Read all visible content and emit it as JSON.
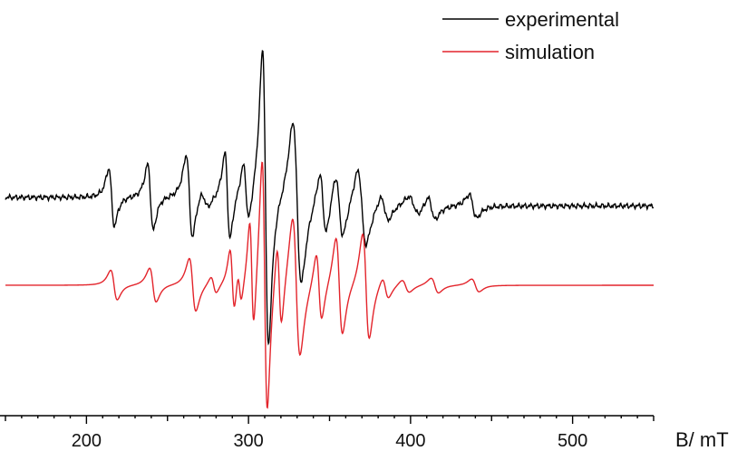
{
  "chart_data": {
    "type": "line",
    "title": "",
    "xlabel": "B/ mT",
    "ylabel": "",
    "xlim": [
      150,
      550
    ],
    "x_ticks": [
      200,
      300,
      400,
      500
    ],
    "y_axis_visible": false,
    "grid": false,
    "legend_position": "top-right",
    "series": [
      {
        "name": "experimental",
        "color": "#000000",
        "baseline": 0,
        "noise": true,
        "features": [
          {
            "type": "first_derivative",
            "center": 215.5,
            "width": 3.0,
            "amplitude": 135,
            "note": "absorption"
          },
          {
            "type": "first_derivative",
            "center": 239.5,
            "width": 3.0,
            "amplitude": 155,
            "note": "absorption"
          },
          {
            "type": "first_derivative",
            "center": 263.5,
            "width": 3.3,
            "amplitude": 195
          },
          {
            "type": "first_derivative",
            "center": 273.0,
            "width": 4.0,
            "amplitude": 40
          },
          {
            "type": "first_derivative",
            "center": 287.0,
            "width": 2.8,
            "amplitude": 205
          },
          {
            "type": "first_derivative",
            "center": 298.5,
            "width": 3.0,
            "amplitude": 140
          },
          {
            "type": "first_derivative",
            "center": 310.5,
            "width": 3.2,
            "amplitude": 700
          },
          {
            "type": "first_derivative",
            "center": 330.0,
            "width": 4.5,
            "amplitude": 380
          },
          {
            "type": "first_derivative",
            "center": 346.0,
            "width": 3.5,
            "amplitude": 150
          },
          {
            "type": "first_derivative",
            "center": 356.0,
            "width": 4.0,
            "amplitude": 150
          },
          {
            "type": "first_derivative",
            "center": 370.0,
            "width": 4.5,
            "amplitude": 180
          },
          {
            "type": "first_derivative",
            "center": 384.0,
            "width": 4.0,
            "amplitude": 60
          },
          {
            "type": "first_derivative",
            "center": 402.0,
            "width": 5.5,
            "amplitude": 45
          },
          {
            "type": "first_derivative",
            "center": 413.0,
            "width": 4.0,
            "amplitude": 55
          },
          {
            "type": "first_derivative",
            "center": 438.5,
            "width": 4.0,
            "amplitude": 55
          }
        ],
        "tail_shift": -13
      },
      {
        "name": "simulation",
        "color": "#e3242b",
        "baseline": 0,
        "noise": false,
        "features": [
          {
            "type": "first_derivative",
            "center": 217.0,
            "width": 3.5,
            "amplitude": 70
          },
          {
            "type": "first_derivative",
            "center": 241.0,
            "width": 3.5,
            "amplitude": 80
          },
          {
            "type": "first_derivative",
            "center": 265.5,
            "width": 3.5,
            "amplitude": 125
          },
          {
            "type": "first_derivative",
            "center": 278.5,
            "width": 3.0,
            "amplitude": 40
          },
          {
            "type": "first_derivative",
            "center": 290.0,
            "width": 2.5,
            "amplitude": 150
          },
          {
            "type": "first_derivative",
            "center": 294.5,
            "width": 2.2,
            "amplitude": 80
          },
          {
            "type": "first_derivative",
            "center": 302.0,
            "width": 2.3,
            "amplitude": 260
          },
          {
            "type": "first_derivative",
            "center": 310.0,
            "width": 2.8,
            "amplitude": 600
          },
          {
            "type": "first_derivative",
            "center": 319.0,
            "width": 2.5,
            "amplitude": 200
          },
          {
            "type": "first_derivative",
            "center": 329.5,
            "width": 4.0,
            "amplitude": 330
          },
          {
            "type": "first_derivative",
            "center": 343.5,
            "width": 3.0,
            "amplitude": 160
          },
          {
            "type": "first_derivative",
            "center": 356.0,
            "width": 3.5,
            "amplitude": 230
          },
          {
            "type": "first_derivative",
            "center": 372.5,
            "width": 3.5,
            "amplitude": 250
          },
          {
            "type": "first_derivative",
            "center": 384.5,
            "width": 3.5,
            "amplitude": 50
          },
          {
            "type": "first_derivative",
            "center": 397.0,
            "width": 4.0,
            "amplitude": 30
          },
          {
            "type": "first_derivative",
            "center": 415.0,
            "width": 4.0,
            "amplitude": 35
          },
          {
            "type": "first_derivative",
            "center": 440.0,
            "width": 4.0,
            "amplitude": 30
          }
        ],
        "tail_shift": 0
      }
    ]
  }
}
